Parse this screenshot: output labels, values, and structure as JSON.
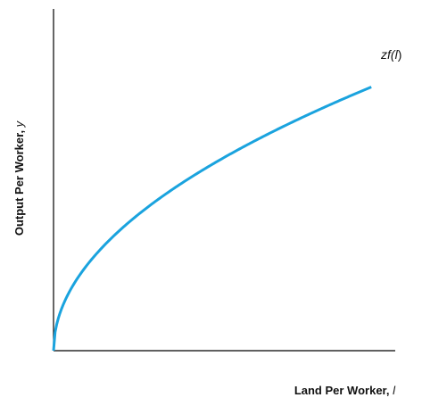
{
  "chart_data": {
    "type": "line",
    "title": "",
    "xlabel": "Land Per Worker, ",
    "xlabel_var": "l",
    "ylabel": "Output Per Worker, ",
    "ylabel_var": "y",
    "xlim": [
      0,
      1
    ],
    "ylim": [
      0,
      1
    ],
    "grid": false,
    "legend": "none",
    "series": [
      {
        "name": "zf(l)",
        "label_text": "zf(",
        "label_var": "l",
        "label_close": ")",
        "color": "#1aa3de",
        "function": "power",
        "exponent": 0.5,
        "scale": 0.8,
        "x_start": 0,
        "x_end": 0.93
      }
    ],
    "colors": {
      "axis": "#000000",
      "curve": "#1aa3de",
      "text": "#111111"
    }
  }
}
